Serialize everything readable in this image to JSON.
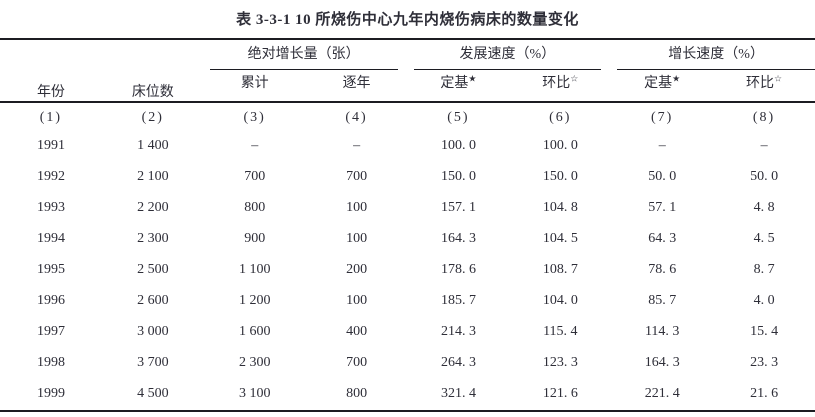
{
  "page": {
    "background": "#ffffff",
    "text_color": "#2e2e38",
    "rule_color": "#1c1c22"
  },
  "table": {
    "title": "表 3-3-1  10 所烧伤中心九年内烧伤病床的数量变化",
    "columns": {
      "year": "年份",
      "beds": "床位数",
      "groups": [
        {
          "label": "绝对增长量（张）",
          "sub": [
            {
              "label": "累计",
              "star": ""
            },
            {
              "label": "逐年",
              "star": ""
            }
          ]
        },
        {
          "label": "发展速度（%）",
          "sub": [
            {
              "label": "定基",
              "star": "★"
            },
            {
              "label": "环比",
              "star": "☆"
            }
          ]
        },
        {
          "label": "增长速度（%）",
          "sub": [
            {
              "label": "定基",
              "star": "★"
            },
            {
              "label": "环比",
              "star": "☆"
            }
          ]
        }
      ],
      "numbers": [
        "(1)",
        "(2)",
        "(3)",
        "(4)",
        "(5)",
        "(6)",
        "(7)",
        "(8)"
      ]
    },
    "rows": [
      [
        "1991",
        "1 400",
        "–",
        "–",
        "100. 0",
        "100. 0",
        "–",
        "–"
      ],
      [
        "1992",
        "2 100",
        "700",
        "700",
        "150. 0",
        "150. 0",
        "50. 0",
        "50. 0"
      ],
      [
        "1993",
        "2 200",
        "800",
        "100",
        "157. 1",
        "104. 8",
        "57. 1",
        "4. 8"
      ],
      [
        "1994",
        "2 300",
        "900",
        "100",
        "164. 3",
        "104. 5",
        "64. 3",
        "4. 5"
      ],
      [
        "1995",
        "2 500",
        "1 100",
        "200",
        "178. 6",
        "108. 7",
        "78. 6",
        "8. 7"
      ],
      [
        "1996",
        "2 600",
        "1 200",
        "100",
        "185. 7",
        "104. 0",
        "85. 7",
        "4. 0"
      ],
      [
        "1997",
        "3 000",
        "1 600",
        "400",
        "214. 3",
        "115. 4",
        "114. 3",
        "15. 4"
      ],
      [
        "1998",
        "3 700",
        "2 300",
        "700",
        "264. 3",
        "123. 3",
        "164. 3",
        "23. 3"
      ],
      [
        "1999",
        "4 500",
        "3 100",
        "800",
        "321. 4",
        "121. 6",
        "221. 4",
        "21. 6"
      ]
    ]
  }
}
